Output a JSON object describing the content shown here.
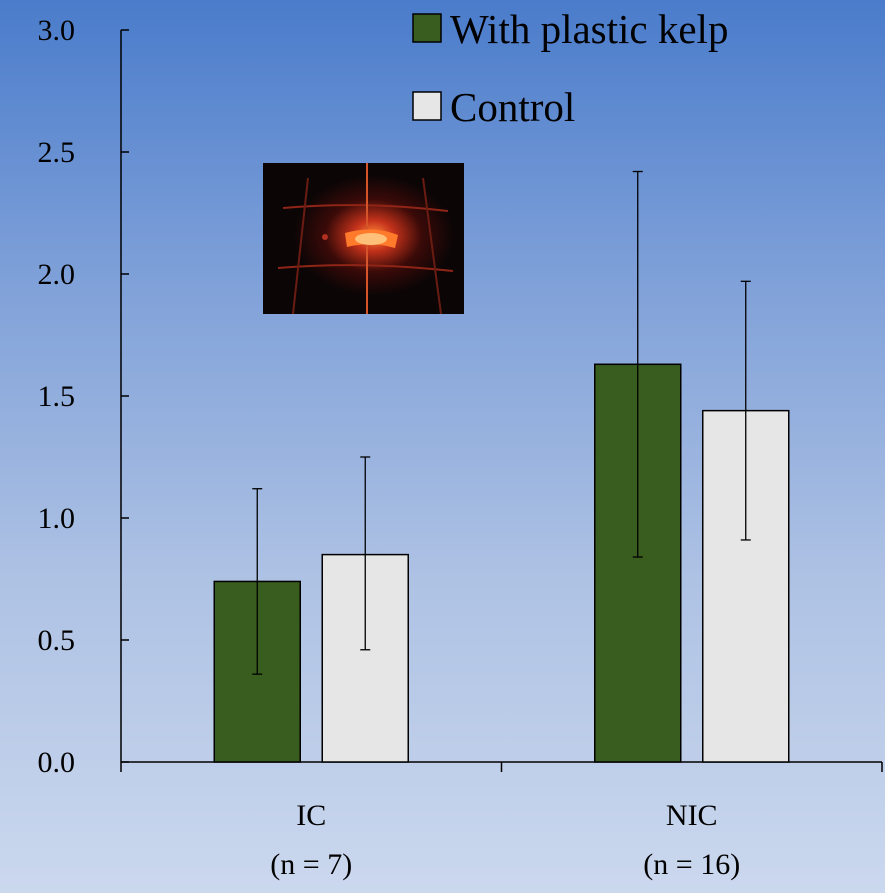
{
  "chart_data": {
    "type": "bar",
    "categories": [
      {
        "label": "IC",
        "sublabel": "(n = 7)"
      },
      {
        "label": "NIC",
        "sublabel": "(n = 16)"
      }
    ],
    "series": [
      {
        "name": "With plastic kelp",
        "color": "#385d1e",
        "values": [
          0.74,
          1.63
        ],
        "error_low": [
          0.36,
          0.84
        ],
        "error_high": [
          1.12,
          2.42
        ]
      },
      {
        "name": "Control",
        "color": "#e6e6e6",
        "values": [
          0.85,
          1.44
        ],
        "error_low": [
          0.46,
          0.91
        ],
        "error_high": [
          1.25,
          1.97
        ]
      }
    ],
    "ylim": [
      0,
      3.0
    ],
    "yticks": [
      "0.0",
      "0.5",
      "1.0",
      "1.5",
      "2.0",
      "2.5",
      "3.0"
    ],
    "legend_position": "top-right",
    "grid": false
  }
}
